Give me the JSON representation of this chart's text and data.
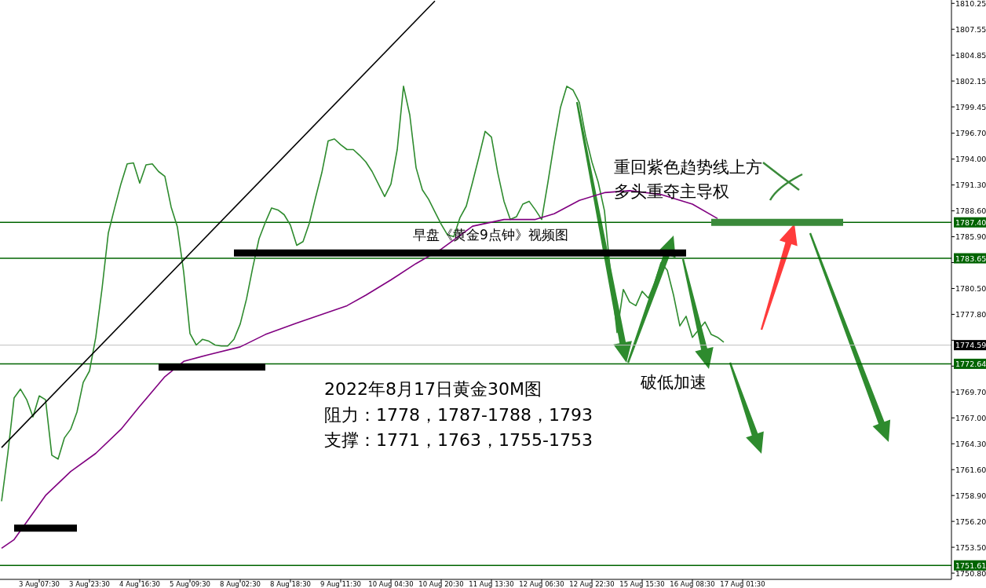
{
  "chart_data": {
    "type": "line",
    "categories": [
      null,
      null,
      null,
      null,
      null,
      null,
      "3 Aug 07:30",
      null,
      null,
      null,
      null,
      null,
      null,
      null,
      "3 Aug 23:30",
      null,
      null,
      null,
      null,
      null,
      null,
      null,
      "4 Aug 16:30",
      null,
      null,
      null,
      null,
      null,
      null,
      null,
      "5 Aug 09:30",
      null,
      null,
      null,
      null,
      null,
      null,
      null,
      "8 Aug 02:30",
      null,
      null,
      null,
      null,
      null,
      null,
      null,
      "8 Aug 18:30",
      null,
      null,
      null,
      null,
      null,
      null,
      null,
      "9 Aug 11:30",
      null,
      null,
      null,
      null,
      null,
      null,
      null,
      "10 Aug 04:30",
      null,
      null,
      null,
      null,
      null,
      null,
      null,
      "10 Aug 20:30",
      null,
      null,
      null,
      null,
      null,
      null,
      null,
      "11 Aug 13:30",
      null,
      null,
      null,
      null,
      null,
      null,
      null,
      "12 Aug 06:30",
      null,
      null,
      null,
      null,
      null,
      null,
      null,
      "12 Aug 22:30",
      null,
      null,
      null,
      null,
      null,
      null,
      null,
      "15 Aug 15:30",
      null,
      null,
      null,
      null,
      null,
      null,
      null,
      "16 Aug 08:30",
      null,
      null,
      null,
      null,
      null,
      null,
      null,
      "17 Aug 01:30",
      null,
      null,
      null,
      null,
      null,
      null,
      null,
      null,
      null,
      null,
      null,
      null,
      null,
      null,
      null,
      null,
      null,
      null,
      null,
      null,
      null,
      null,
      null,
      null,
      null,
      null,
      null,
      null,
      null,
      null,
      null,
      null,
      null
    ],
    "ylim": [
      1750.15,
      1810.6
    ],
    "yticks": [
      {
        "value": 1810.25,
        "label": "1810.25"
      },
      {
        "value": 1807.55,
        "label": "1807.55"
      },
      {
        "value": 1804.85,
        "label": "1804.85"
      },
      {
        "value": 1802.15,
        "label": "1802.15"
      },
      {
        "value": 1799.45,
        "label": "1799.45"
      },
      {
        "value": 1796.7,
        "label": "1796.70"
      },
      {
        "value": 1794,
        "label": "1794.00"
      },
      {
        "value": 1791.3,
        "label": "1791.30"
      },
      {
        "value": 1788.6,
        "label": "1788.60"
      },
      {
        "value": 1785.9,
        "label": "1785.90"
      },
      {
        "value": 1783.2,
        "label": null
      },
      {
        "value": 1780.5,
        "label": "1780.50"
      },
      {
        "value": 1777.8,
        "label": "1777.80"
      },
      {
        "value": 1775.1,
        "label": null
      },
      {
        "value": 1772.4,
        "label": null
      },
      {
        "value": 1769.7,
        "label": "1769.70"
      },
      {
        "value": 1767,
        "label": "1767.00"
      },
      {
        "value": 1764.3,
        "label": "1764.30"
      },
      {
        "value": 1761.6,
        "label": "1761.60"
      },
      {
        "value": 1758.9,
        "label": "1758.90"
      },
      {
        "value": 1756.2,
        "label": "1756.20"
      },
      {
        "value": 1753.5,
        "label": "1753.50"
      },
      {
        "value": 1750.8,
        "label": "1750.80"
      }
    ],
    "grid": false,
    "marker": "none",
    "series": [
      {
        "color": "#2e8b2e",
        "values": [
          1758.3,
          1763.3,
          1769.1,
          1770.0,
          1768.9,
          1767.1,
          1769.3,
          1768.9,
          1763.1,
          1762.7,
          1764.9,
          1765.8,
          1767.6,
          1770.7,
          1771.9,
          1775.4,
          1780.5,
          1786.3,
          1788.9,
          1791.4,
          1793.5,
          1793.6,
          1791.5,
          1793.4,
          1793.5,
          1792.7,
          1792.2,
          1789.0,
          1786.9,
          1782.2,
          1775.8,
          1774.6,
          1775.2,
          1775.0,
          1774.6,
          1774.5,
          1774.5,
          1775.2,
          1776.8,
          1779.4,
          1782.7,
          1785.7,
          1787.4,
          1788.9,
          1788.7,
          1788.2,
          1787.1,
          1785.0,
          1785.4,
          1787.3,
          1790.0,
          1792.6,
          1795.9,
          1796.1,
          1795.5,
          1795.0,
          1795.0,
          1794.4,
          1793.7,
          1792.7,
          1791.4,
          1790.1,
          1791.4,
          1795.0,
          1801.6,
          1798.6,
          1793.1,
          1790.8,
          1789.8,
          1788.5,
          1787.2,
          1786.1,
          1785.9,
          1787.9,
          1789.1,
          1791.6,
          1794.2,
          1796.9,
          1796.3,
          1792.6,
          1789.6,
          1787.7,
          1788.0,
          1789.3,
          1789.6,
          1788.7,
          1787.7,
          1791.6,
          1795.7,
          1799.4,
          1801.6,
          1801.2,
          1799.9,
          1796.4,
          1793.7,
          1791.6,
          1788.6,
          1781.9,
          1775.9,
          1780.4,
          1779.1,
          1778.7,
          1780.2,
          1779.5,
          1781.1,
          1783.2,
          1782.4,
          1779.8,
          1776.6,
          1777.6,
          1775.4,
          1776.2,
          1777.0,
          1775.7,
          1775.4,
          1774.9,
          null,
          null,
          null,
          null,
          null,
          null,
          null,
          null,
          null,
          null,
          null,
          null,
          null,
          null,
          null,
          null,
          null,
          null,
          null,
          null,
          null,
          null,
          null,
          null,
          null,
          null,
          null,
          null,
          null,
          null,
          null,
          null,
          null,
          null,
          null,
          null
        ]
      },
      {
        "color": "#800080",
        "values": [
          1753.4,
          null,
          1754.3,
          null,
          null,
          null,
          null,
          1758.9,
          null,
          null,
          null,
          1761.4,
          null,
          null,
          null,
          1763.3,
          null,
          null,
          null,
          1765.8,
          null,
          null,
          1768.2,
          null,
          null,
          null,
          1771.3,
          null,
          null,
          1772.9,
          null,
          null,
          null,
          1773.6,
          null,
          null,
          null,
          null,
          1774.4,
          null,
          null,
          null,
          1775.7,
          null,
          null,
          null,
          null,
          1776.9,
          null,
          null,
          null,
          1777.8,
          null,
          null,
          null,
          1778.7,
          null,
          null,
          1779.8,
          null,
          null,
          null,
          1781.4,
          null,
          null,
          null,
          1783.1,
          null,
          null,
          null,
          1784.6,
          null,
          null,
          null,
          null,
          1787.0,
          null,
          null,
          null,
          null,
          1787.7,
          null,
          null,
          null,
          null,
          1787.7,
          null,
          null,
          1788.3,
          null,
          null,
          null,
          1789.7,
          null,
          null,
          null,
          1790.5,
          null,
          null,
          null,
          1790.7,
          null,
          null,
          null,
          null,
          1790.3,
          null,
          null,
          null,
          null,
          1789.3,
          null,
          null,
          null,
          1787.8,
          null,
          null,
          null,
          null,
          null,
          null,
          null,
          null,
          null,
          null,
          null,
          null,
          null,
          null,
          null,
          null,
          null,
          null,
          null,
          null,
          null,
          null,
          null,
          null,
          null,
          null,
          null,
          null,
          null,
          null,
          null,
          null,
          null,
          null,
          null,
          null,
          null
        ]
      },
      {
        "color": "#000000",
        "values": [
          1763.9,
          null,
          null,
          null,
          null,
          null,
          null,
          null,
          null,
          null,
          null,
          null,
          null,
          null,
          null,
          null,
          null,
          null,
          null,
          null,
          null,
          null,
          null,
          null,
          null,
          null,
          null,
          null,
          null,
          null,
          null,
          null,
          null,
          null,
          null,
          null,
          null,
          null,
          null,
          null,
          null,
          null,
          null,
          null,
          null,
          null,
          null,
          null,
          null,
          null,
          null,
          null,
          null,
          null,
          null,
          null,
          null,
          null,
          null,
          null,
          null,
          null,
          null,
          null,
          null,
          null,
          null,
          null,
          null,
          1810.5,
          null,
          null,
          null,
          null,
          null,
          null,
          null,
          null,
          null,
          null,
          null,
          null,
          null,
          null,
          null,
          null,
          null,
          null,
          null,
          null,
          null,
          null,
          null,
          null,
          null,
          null,
          null,
          null,
          null,
          null,
          null,
          null,
          null,
          null,
          null,
          null,
          null,
          null,
          null,
          null,
          null,
          null,
          null,
          null,
          null,
          null,
          null,
          null,
          null,
          null,
          null,
          null,
          null,
          null,
          null,
          null,
          null,
          null,
          null,
          null,
          null,
          null,
          null,
          null,
          null,
          null,
          null,
          null,
          null,
          null,
          null,
          null,
          null,
          null,
          null,
          null,
          null,
          null,
          null,
          null,
          null,
          null
        ]
      },
      {
        "color": "#000000",
        "values": [
          null,
          null,
          1755.5,
          null,
          null,
          null,
          null,
          null,
          null,
          null,
          null,
          null,
          1755.5,
          null,
          null,
          null,
          null,
          null,
          null,
          null,
          null,
          null,
          null,
          null,
          null,
          null,
          null,
          null,
          null,
          null,
          null,
          null,
          null,
          null,
          null,
          null,
          null,
          null,
          null,
          null,
          null,
          null,
          null,
          null,
          null,
          null,
          null,
          null,
          null,
          null,
          null,
          null,
          null,
          null,
          null,
          null,
          null,
          null,
          null,
          null,
          null,
          null,
          null,
          null,
          null,
          null,
          null,
          null,
          null,
          null,
          null,
          null,
          null,
          null,
          null,
          null,
          null,
          null,
          null,
          null,
          null,
          null,
          null,
          null,
          null,
          null,
          null,
          null,
          null,
          null,
          null,
          null,
          null,
          null,
          null,
          null,
          null,
          null,
          null,
          null,
          null,
          null,
          null,
          null,
          null,
          null,
          null,
          null,
          null,
          null,
          null,
          null,
          null,
          null,
          null,
          null,
          null,
          null,
          null,
          null,
          null,
          null,
          null,
          null,
          null,
          null,
          null,
          null,
          null,
          null,
          null,
          null,
          null,
          null,
          null,
          null,
          null,
          null,
          null,
          null,
          null,
          null,
          null,
          null,
          null,
          null,
          null,
          null,
          null,
          null,
          null,
          null
        ]
      },
      {
        "color": "#000000",
        "values": [
          null,
          null,
          null,
          null,
          null,
          null,
          null,
          null,
          null,
          null,
          null,
          null,
          null,
          null,
          null,
          null,
          null,
          null,
          null,
          null,
          null,
          null,
          null,
          null,
          null,
          1772.3,
          null,
          null,
          null,
          null,
          null,
          null,
          null,
          null,
          null,
          null,
          null,
          null,
          null,
          null,
          null,
          null,
          1772.3,
          null,
          null,
          null,
          null,
          null,
          null,
          null,
          null,
          null,
          null,
          null,
          null,
          null,
          null,
          null,
          null,
          null,
          null,
          null,
          null,
          null,
          null,
          null,
          null,
          null,
          null,
          null,
          null,
          null,
          null,
          null,
          null,
          null,
          null,
          null,
          null,
          null,
          null,
          null,
          null,
          null,
          null,
          null,
          null,
          null,
          null,
          null,
          null,
          null,
          null,
          null,
          null,
          null,
          null,
          null,
          null,
          null,
          null,
          null,
          null,
          null,
          null,
          null,
          null,
          null,
          null,
          null,
          null,
          null,
          null,
          null,
          null,
          null,
          null,
          null,
          null,
          null,
          null,
          null,
          null,
          null,
          null,
          null,
          null,
          null,
          null,
          null,
          null,
          null,
          null,
          null,
          null,
          null,
          null,
          null,
          null,
          null,
          null,
          null,
          null,
          null,
          null,
          null,
          null,
          null,
          null,
          null,
          null,
          null
        ]
      },
      {
        "color": "#000000",
        "values": [
          null,
          null,
          null,
          null,
          null,
          null,
          null,
          null,
          null,
          null,
          null,
          null,
          null,
          null,
          null,
          null,
          null,
          null,
          null,
          null,
          null,
          null,
          null,
          null,
          null,
          null,
          null,
          null,
          null,
          null,
          null,
          null,
          null,
          null,
          null,
          null,
          null,
          1784.2,
          null,
          null,
          null,
          null,
          null,
          null,
          null,
          null,
          null,
          null,
          null,
          null,
          null,
          null,
          null,
          null,
          null,
          null,
          null,
          null,
          null,
          null,
          null,
          null,
          null,
          null,
          null,
          null,
          null,
          null,
          null,
          null,
          null,
          null,
          null,
          null,
          null,
          null,
          null,
          null,
          null,
          null,
          null,
          null,
          null,
          null,
          null,
          null,
          null,
          null,
          null,
          null,
          null,
          null,
          null,
          null,
          null,
          null,
          null,
          null,
          null,
          null,
          null,
          null,
          null,
          null,
          null,
          null,
          null,
          null,
          null,
          1784.2,
          null,
          null,
          null,
          null,
          null,
          null,
          null,
          null,
          null,
          null,
          null,
          null,
          null,
          null,
          null,
          null,
          null,
          null,
          null,
          null,
          null,
          null,
          null,
          null,
          null,
          null,
          null,
          null,
          null,
          null,
          null,
          null,
          null,
          null,
          null,
          null,
          null,
          null,
          null,
          null,
          null,
          null
        ]
      },
      {
        "color": "#3a8a3a",
        "values": [
          null,
          null,
          null,
          null,
          null,
          null,
          null,
          null,
          null,
          null,
          null,
          null,
          null,
          null,
          null,
          null,
          null,
          null,
          null,
          null,
          null,
          null,
          null,
          null,
          null,
          null,
          null,
          null,
          null,
          null,
          null,
          null,
          null,
          null,
          null,
          null,
          null,
          null,
          null,
          null,
          null,
          null,
          null,
          null,
          null,
          null,
          null,
          null,
          null,
          null,
          null,
          null,
          null,
          null,
          null,
          null,
          null,
          null,
          null,
          null,
          null,
          null,
          null,
          null,
          null,
          null,
          null,
          null,
          null,
          null,
          null,
          null,
          null,
          null,
          null,
          null,
          null,
          null,
          null,
          null,
          null,
          null,
          null,
          null,
          null,
          null,
          null,
          null,
          null,
          null,
          null,
          null,
          null,
          null,
          null,
          null,
          null,
          null,
          null,
          null,
          null,
          null,
          null,
          null,
          null,
          null,
          null,
          null,
          null,
          null,
          null,
          null,
          null,
          1787.4,
          null,
          null,
          null,
          null,
          null,
          null,
          null,
          null,
          null,
          null,
          null,
          null,
          null,
          null,
          null,
          null,
          null,
          null,
          null,
          null,
          1787.4,
          null,
          null,
          null,
          null,
          null,
          null,
          null,
          null,
          null,
          null,
          null,
          null,
          null,
          null,
          null,
          null,
          null
        ]
      }
    ],
    "ref_lines": [
      {
        "axis": "y",
        "value": 1787.4,
        "label": "1787.40",
        "color": "#006400"
      },
      {
        "axis": "y",
        "value": 1783.65,
        "label": "1783.65",
        "color": "#006400"
      },
      {
        "axis": "y",
        "value": 1774.59,
        "label": "1774.59",
        "color": "#c0c0c0"
      },
      {
        "axis": "y",
        "value": 1772.64,
        "label": "1772.64",
        "color": "#006400"
      },
      {
        "axis": "y",
        "value": 1751.61,
        "label": "1751.61",
        "color": "#006400"
      }
    ],
    "annotations": [
      "早盘《黄金9点钟》视频图",
      "重回紫色趋势线上方",
      "多头重夺主导权",
      "破低加速",
      "2022年8月17日黄金30M图",
      "阻力：1778，1787-1788，1793",
      "支撑：1771，1763，1755-1753"
    ]
  }
}
